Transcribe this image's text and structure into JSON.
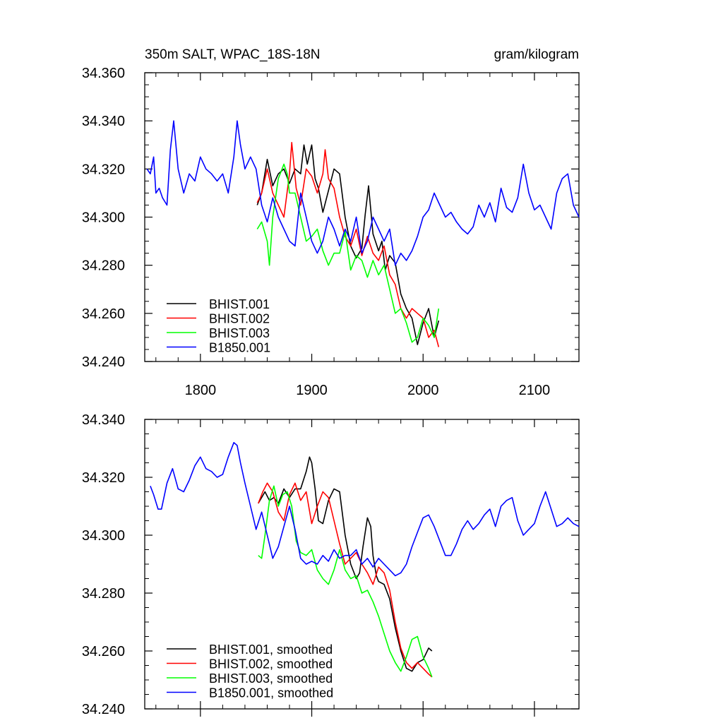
{
  "chart_data": [
    {
      "type": "line",
      "title": "350m SALT, WPAC_18S-18N",
      "units": "gram/kilogram",
      "xlim": [
        1750,
        2140
      ],
      "ylim": [
        34.24,
        34.36
      ],
      "xticks": [
        1800,
        1900,
        2000,
        2100
      ],
      "xticklabels": [
        "1800",
        "1900",
        "2000",
        "2100"
      ],
      "yticks": [
        34.24,
        34.26,
        34.28,
        34.3,
        34.32,
        34.34,
        34.36
      ],
      "yticklabels": [
        "34.240",
        "34.260",
        "34.280",
        "34.300",
        "34.320",
        "34.340",
        "34.360"
      ],
      "legend_position": "bottom-left",
      "series": [
        {
          "name": "BHIST.001",
          "color": "#000000",
          "x": [
            1851,
            1855,
            1860,
            1865,
            1870,
            1875,
            1880,
            1885,
            1890,
            1893,
            1896,
            1900,
            1903,
            1906,
            1910,
            1915,
            1920,
            1925,
            1930,
            1935,
            1940,
            1945,
            1948,
            1951,
            1955,
            1960,
            1963,
            1966,
            1970,
            1975,
            1980,
            1985,
            1990,
            1995,
            2000,
            2005,
            2010,
            2014
          ],
          "y": [
            34.305,
            34.31,
            34.324,
            34.313,
            34.318,
            34.32,
            34.314,
            34.32,
            34.318,
            34.33,
            34.322,
            34.33,
            34.316,
            34.312,
            34.302,
            34.311,
            34.32,
            34.318,
            34.3,
            34.288,
            34.283,
            34.287,
            34.301,
            34.313,
            34.293,
            34.286,
            34.29,
            34.278,
            34.284,
            34.281,
            34.268,
            34.262,
            34.258,
            34.247,
            34.256,
            34.262,
            34.25,
            34.257
          ]
        },
        {
          "name": "BHIST.002",
          "color": "#ff0000",
          "x": [
            1851,
            1855,
            1860,
            1865,
            1870,
            1875,
            1880,
            1882,
            1886,
            1890,
            1895,
            1900,
            1905,
            1910,
            1912,
            1915,
            1920,
            1925,
            1930,
            1935,
            1940,
            1945,
            1950,
            1955,
            1960,
            1965,
            1970,
            1975,
            1980,
            1985,
            1990,
            1995,
            2000,
            2005,
            2010,
            2014
          ],
          "y": [
            34.306,
            34.31,
            34.32,
            34.31,
            34.305,
            34.3,
            34.318,
            34.331,
            34.312,
            34.305,
            34.32,
            34.317,
            34.31,
            34.318,
            34.328,
            34.316,
            34.312,
            34.3,
            34.292,
            34.288,
            34.295,
            34.284,
            34.292,
            34.285,
            34.282,
            34.288,
            34.276,
            34.272,
            34.262,
            34.258,
            34.262,
            34.26,
            34.258,
            34.25,
            34.253,
            34.246
          ]
        },
        {
          "name": "BHIST.003",
          "color": "#00ff00",
          "x": [
            1851,
            1855,
            1860,
            1862,
            1865,
            1870,
            1875,
            1878,
            1880,
            1885,
            1890,
            1895,
            1900,
            1905,
            1910,
            1915,
            1920,
            1925,
            1930,
            1935,
            1940,
            1945,
            1950,
            1955,
            1960,
            1965,
            1970,
            1975,
            1980,
            1985,
            1990,
            1995,
            2000,
            2005,
            2010,
            2014
          ],
          "y": [
            34.295,
            34.298,
            34.29,
            34.28,
            34.3,
            34.316,
            34.322,
            34.318,
            34.31,
            34.31,
            34.3,
            34.29,
            34.292,
            34.295,
            34.286,
            34.28,
            34.285,
            34.285,
            34.294,
            34.278,
            34.284,
            34.282,
            34.275,
            34.282,
            34.276,
            34.28,
            34.27,
            34.26,
            34.262,
            34.256,
            34.248,
            34.25,
            34.258,
            34.255,
            34.25,
            34.262
          ]
        },
        {
          "name": "B1850.001",
          "color": "#0000ff",
          "x": [
            1752,
            1755,
            1758,
            1760,
            1763,
            1766,
            1770,
            1773,
            1776,
            1780,
            1785,
            1790,
            1795,
            1800,
            1805,
            1810,
            1815,
            1820,
            1825,
            1830,
            1833,
            1836,
            1840,
            1845,
            1850,
            1855,
            1860,
            1865,
            1870,
            1875,
            1880,
            1885,
            1890,
            1895,
            1900,
            1905,
            1910,
            1915,
            1920,
            1925,
            1930,
            1935,
            1940,
            1945,
            1950,
            1955,
            1960,
            1965,
            1970,
            1975,
            1980,
            1985,
            1990,
            1995,
            2000,
            2005,
            2010,
            2015,
            2020,
            2025,
            2030,
            2035,
            2040,
            2045,
            2050,
            2055,
            2060,
            2065,
            2070,
            2075,
            2080,
            2085,
            2090,
            2095,
            2100,
            2105,
            2110,
            2115,
            2120,
            2125,
            2130,
            2135,
            2140
          ],
          "y": [
            34.32,
            34.318,
            34.325,
            34.31,
            34.312,
            34.308,
            34.305,
            34.328,
            34.34,
            34.32,
            34.31,
            34.318,
            34.315,
            34.325,
            34.32,
            34.318,
            34.315,
            34.318,
            34.31,
            34.325,
            34.34,
            34.33,
            34.32,
            34.325,
            34.32,
            34.305,
            34.298,
            34.308,
            34.3,
            34.295,
            34.29,
            34.288,
            34.31,
            34.3,
            34.29,
            34.285,
            34.29,
            34.3,
            34.295,
            34.288,
            34.295,
            34.29,
            34.3,
            34.285,
            34.29,
            34.3,
            34.295,
            34.29,
            34.295,
            34.28,
            34.285,
            34.282,
            34.286,
            34.292,
            34.3,
            34.303,
            34.31,
            34.305,
            34.3,
            34.302,
            34.298,
            34.295,
            34.293,
            34.296,
            34.305,
            34.3,
            34.306,
            34.298,
            34.312,
            34.304,
            34.302,
            34.308,
            34.322,
            34.31,
            34.303,
            34.305,
            34.3,
            34.295,
            34.31,
            34.316,
            34.318,
            34.305,
            34.3
          ]
        }
      ],
      "legend": [
        "BHIST.001",
        "BHIST.002",
        "BHIST.003",
        "B1850.001"
      ]
    },
    {
      "type": "line",
      "xlim": [
        1750,
        2140
      ],
      "ylim": [
        34.24,
        34.34
      ],
      "xticks": [
        1800,
        1900,
        2000,
        2100
      ],
      "yticks": [
        34.24,
        34.26,
        34.28,
        34.3,
        34.32,
        34.34
      ],
      "yticklabels": [
        "34.240",
        "34.260",
        "34.280",
        "34.300",
        "34.320",
        "34.340"
      ],
      "legend_position": "bottom-left",
      "series": [
        {
          "name": "BHIST.001, smoothed",
          "color": "#000000",
          "x": [
            1852,
            1858,
            1862,
            1866,
            1870,
            1875,
            1880,
            1885,
            1890,
            1895,
            1898,
            1900,
            1903,
            1906,
            1910,
            1915,
            1920,
            1925,
            1930,
            1935,
            1940,
            1943,
            1946,
            1950,
            1953,
            1955,
            1958,
            1960,
            1965,
            1970,
            1975,
            1980,
            1985,
            1990,
            1995,
            2000,
            2005,
            2008
          ],
          "y": [
            34.311,
            34.315,
            34.312,
            34.313,
            34.311,
            34.316,
            34.313,
            34.316,
            34.316,
            34.322,
            34.327,
            34.325,
            34.316,
            34.305,
            34.304,
            34.312,
            34.316,
            34.315,
            34.3,
            34.29,
            34.285,
            34.287,
            34.296,
            34.306,
            34.303,
            34.293,
            34.286,
            34.284,
            34.283,
            34.278,
            34.268,
            34.26,
            34.254,
            34.253,
            34.256,
            34.257,
            34.261,
            34.26
          ]
        },
        {
          "name": "BHIST.002, smoothed",
          "color": "#ff0000",
          "x": [
            1852,
            1856,
            1860,
            1865,
            1870,
            1875,
            1880,
            1885,
            1890,
            1895,
            1900,
            1905,
            1910,
            1915,
            1920,
            1925,
            1930,
            1935,
            1940,
            1945,
            1950,
            1955,
            1960,
            1965,
            1970,
            1975,
            1980,
            1985,
            1990,
            1995,
            2000,
            2005,
            2008
          ],
          "y": [
            34.311,
            34.315,
            34.318,
            34.315,
            34.308,
            34.305,
            34.314,
            34.318,
            34.312,
            34.315,
            34.304,
            34.31,
            34.315,
            34.313,
            34.305,
            34.297,
            34.29,
            34.292,
            34.294,
            34.29,
            34.287,
            34.283,
            34.289,
            34.287,
            34.281,
            34.27,
            34.261,
            34.256,
            34.254,
            34.256,
            34.254,
            34.252,
            34.251
          ]
        },
        {
          "name": "BHIST.003, smoothed",
          "color": "#00ff00",
          "x": [
            1852,
            1855,
            1858,
            1862,
            1866,
            1870,
            1874,
            1878,
            1882,
            1886,
            1890,
            1895,
            1900,
            1905,
            1910,
            1915,
            1920,
            1925,
            1930,
            1935,
            1940,
            1945,
            1950,
            1955,
            1960,
            1965,
            1970,
            1975,
            1980,
            1985,
            1990,
            1995,
            2000,
            2005,
            2008
          ],
          "y": [
            34.293,
            34.292,
            34.3,
            34.312,
            34.317,
            34.31,
            34.314,
            34.315,
            34.31,
            34.298,
            34.294,
            34.293,
            34.295,
            34.288,
            34.285,
            34.283,
            34.288,
            34.295,
            34.288,
            34.285,
            34.286,
            34.28,
            34.281,
            34.277,
            34.272,
            34.266,
            34.26,
            34.256,
            34.253,
            34.258,
            34.264,
            34.265,
            34.258,
            34.254,
            34.251
          ]
        },
        {
          "name": "B1850.001, smoothed",
          "color": "#0000ff",
          "x": [
            1755,
            1758,
            1762,
            1765,
            1770,
            1775,
            1780,
            1785,
            1790,
            1795,
            1800,
            1805,
            1810,
            1815,
            1820,
            1825,
            1830,
            1833,
            1836,
            1840,
            1845,
            1850,
            1855,
            1860,
            1865,
            1870,
            1875,
            1880,
            1885,
            1890,
            1895,
            1900,
            1905,
            1910,
            1915,
            1920,
            1925,
            1930,
            1935,
            1940,
            1945,
            1950,
            1955,
            1960,
            1965,
            1970,
            1975,
            1980,
            1985,
            1990,
            1995,
            2000,
            2005,
            2010,
            2015,
            2020,
            2025,
            2030,
            2035,
            2040,
            2045,
            2050,
            2055,
            2060,
            2065,
            2070,
            2075,
            2080,
            2085,
            2090,
            2095,
            2100,
            2105,
            2110,
            2115,
            2120,
            2125,
            2130,
            2135,
            2140
          ],
          "y": [
            34.317,
            34.314,
            34.309,
            34.309,
            34.318,
            34.323,
            34.316,
            34.315,
            34.319,
            34.324,
            34.327,
            34.323,
            34.322,
            34.32,
            34.321,
            34.327,
            34.332,
            34.331,
            34.325,
            34.318,
            34.31,
            34.302,
            34.308,
            34.3,
            34.292,
            34.296,
            34.303,
            34.31,
            34.302,
            34.292,
            34.29,
            34.291,
            34.29,
            34.293,
            34.291,
            34.295,
            34.292,
            34.293,
            34.293,
            34.295,
            34.29,
            34.292,
            34.289,
            34.292,
            34.29,
            34.288,
            34.286,
            34.287,
            34.29,
            34.296,
            34.301,
            34.306,
            34.307,
            34.303,
            34.298,
            34.293,
            34.293,
            34.297,
            34.302,
            34.305,
            34.302,
            34.304,
            34.307,
            34.309,
            34.303,
            34.31,
            34.312,
            34.313,
            34.305,
            34.3,
            34.302,
            34.304,
            34.31,
            34.315,
            34.309,
            34.303,
            34.304,
            34.306,
            34.304,
            34.303
          ]
        }
      ],
      "legend": [
        "BHIST.001, smoothed",
        "BHIST.002, smoothed",
        "BHIST.003, smoothed",
        "B1850.001, smoothed"
      ]
    }
  ]
}
